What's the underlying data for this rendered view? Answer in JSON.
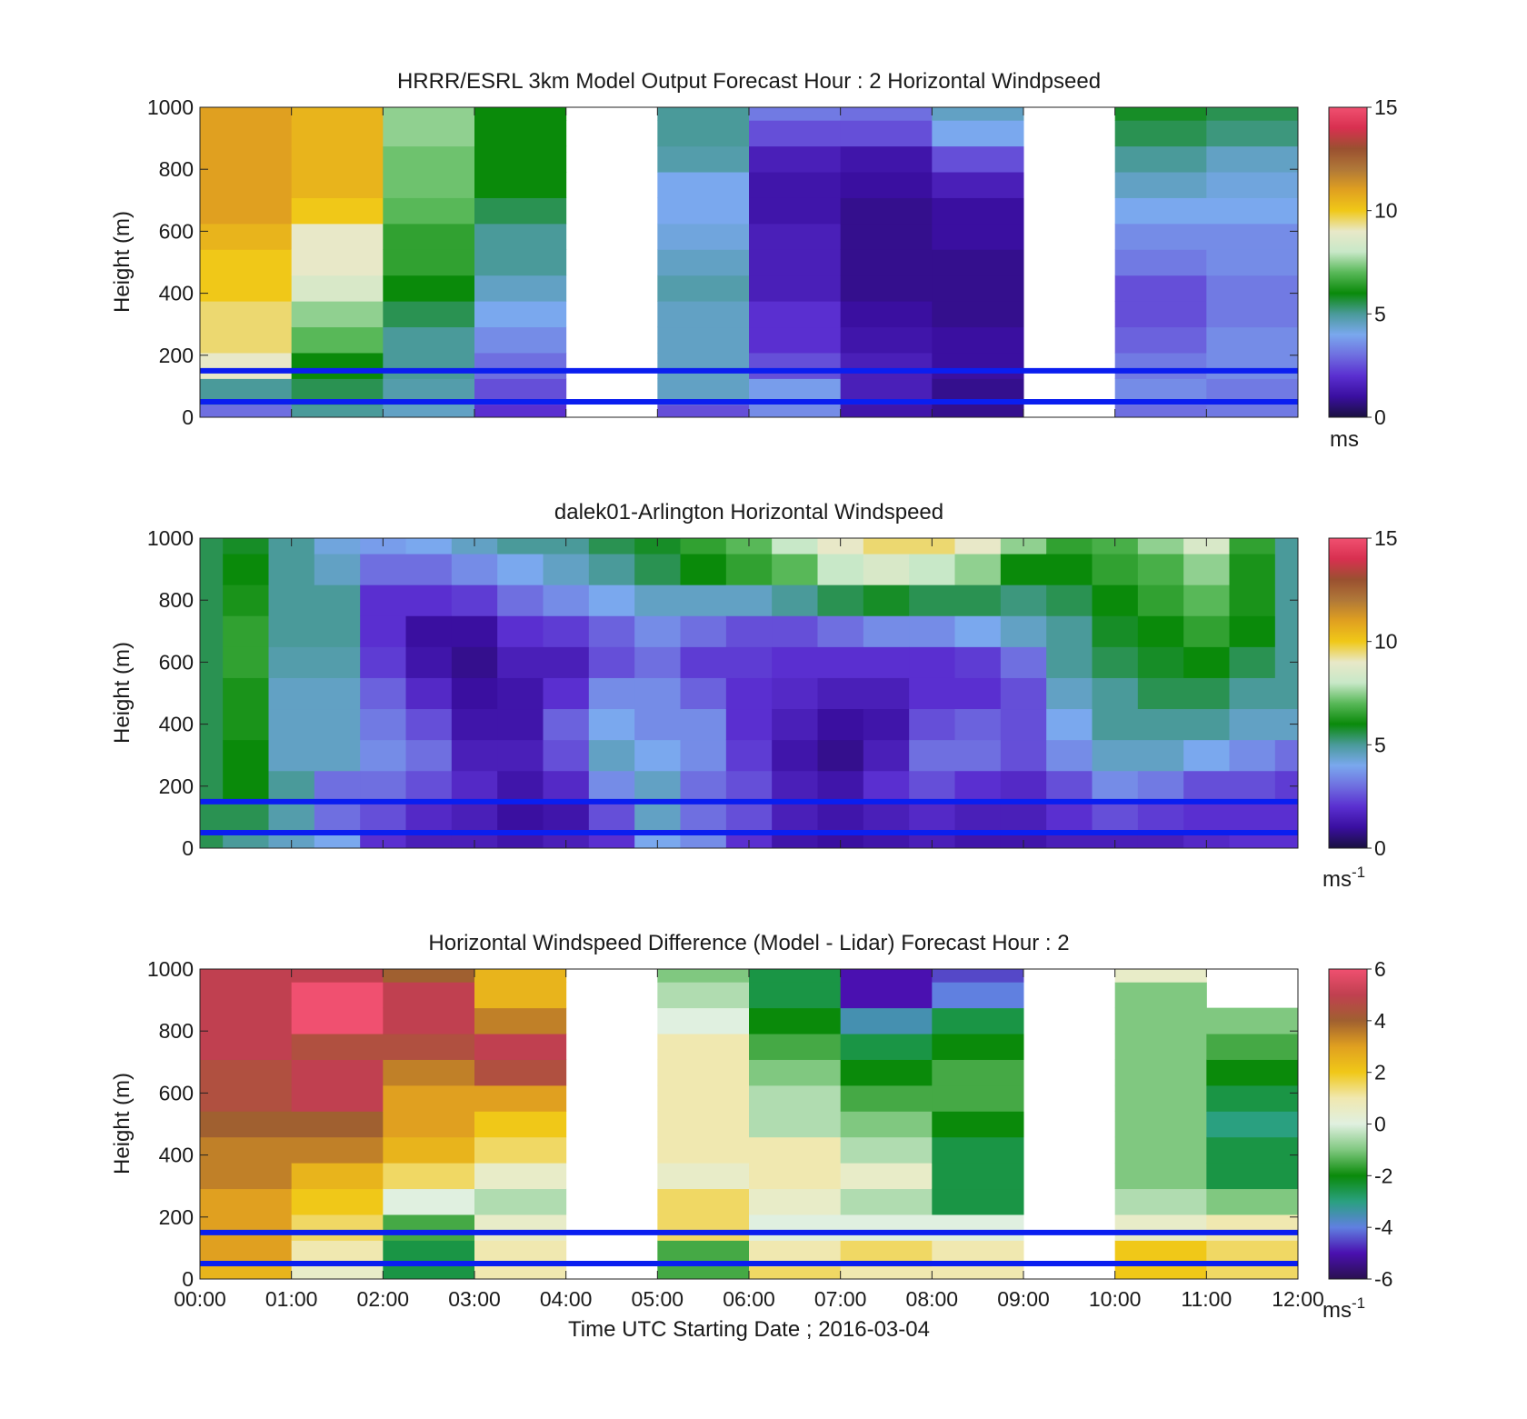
{
  "colors": {
    "speed_stops": [
      "#1a1040",
      "#3a0fa0",
      "#5a2fd0",
      "#6f6fe0",
      "#7aa8ee",
      "#4a9a9a",
      "#0a8a0a",
      "#58b858",
      "#c8e8c8",
      "#e8e8c8",
      "#f0c818",
      "#e0a020",
      "#b07838",
      "#9a5030",
      "#d83050",
      "#f05070"
    ],
    "diff_stops": [
      "#2a1050",
      "#4a10b0",
      "#6080e0",
      "#2aa080",
      "#0a8a0a",
      "#80c880",
      "#e0f0e0",
      "#f0e8b0",
      "#f0c818",
      "#e0a020",
      "#a06030",
      "#c04050",
      "#f05070"
    ],
    "overlay_line": "#0a1ef0",
    "missing": "#8a8a8a"
  },
  "x_axis": {
    "ticks": [
      "00:00",
      "01:00",
      "02:00",
      "03:00",
      "04:00",
      "05:00",
      "06:00",
      "07:00",
      "08:00",
      "09:00",
      "10:00",
      "11:00",
      "12:00"
    ],
    "label": "Time UTC  Starting Date ; 2016-03-04"
  },
  "chart_data": [
    {
      "type": "heatmap",
      "title": "HRRR/ESRL 3km Model Output   Forecast Hour : 2 Horizontal Windpseed",
      "ylabel": "Height (m)",
      "xlabel": "",
      "y_ticks": [
        "0",
        "200",
        "400",
        "600",
        "800",
        "1000"
      ],
      "ylim": [
        0,
        1000
      ],
      "xlim_hours": [
        0,
        12
      ],
      "colorbar": {
        "range": [
          0,
          15
        ],
        "ticks": [
          "0",
          "5",
          "10",
          "15"
        ],
        "unit": "ms"
      },
      "reference_lines_m": [
        50,
        150
      ],
      "columns": [
        {
          "start_hour": 0,
          "values": [
            3,
            5,
            9,
            9.5,
            9.5,
            10,
            10,
            10.5,
            11,
            11,
            11,
            11,
            11
          ]
        },
        {
          "start_hour": 1,
          "values": [
            5,
            5.5,
            6,
            7,
            7.5,
            8.5,
            9,
            9,
            10,
            10.5,
            10.5,
            10.5,
            10.5
          ]
        },
        {
          "start_hour": 2,
          "values": [
            4.5,
            4.8,
            5,
            5,
            5.5,
            6,
            6.5,
            6.5,
            7,
            7.2,
            7.2,
            7.5,
            7.5
          ]
        },
        {
          "start_hour": 3,
          "values": [
            2,
            2.5,
            3,
            3.5,
            4,
            4.5,
            5,
            5,
            5.5,
            6,
            6,
            6,
            6
          ]
        },
        {
          "start_hour": 4,
          "values": []
        },
        {
          "start_hour": 5,
          "values": [
            2.5,
            4.5,
            4.5,
            4.5,
            4.5,
            4.8,
            4.5,
            4.2,
            4,
            4,
            4.8,
            5,
            5
          ]
        },
        {
          "start_hour": 6,
          "values": [
            3.5,
            3.8,
            2.5,
            2,
            2,
            1.5,
            1.5,
            1.5,
            1.2,
            1.2,
            1.5,
            2.5,
            3.2
          ]
        },
        {
          "start_hour": 7,
          "values": [
            1.2,
            1.5,
            1.5,
            1.2,
            1,
            0.8,
            0.8,
            0.8,
            0.8,
            1,
            1.2,
            2.5,
            3
          ]
        },
        {
          "start_hour": 8,
          "values": [
            0.8,
            0.8,
            1,
            1,
            0.8,
            0.8,
            0.8,
            1,
            1,
            1.5,
            2.5,
            4,
            4.5
          ]
        },
        {
          "start_hour": 9,
          "values": []
        },
        {
          "start_hour": 10,
          "values": [
            3,
            3.5,
            3.2,
            2.8,
            2.5,
            2.5,
            3.2,
            3.5,
            4,
            4.5,
            5,
            5.5,
            5.8
          ]
        },
        {
          "start_hour": 11,
          "values": [
            3.2,
            3.2,
            3.5,
            3.5,
            3.2,
            3.2,
            3.5,
            3.5,
            4,
            4.2,
            4.5,
            5.2,
            5.5
          ]
        }
      ]
    },
    {
      "type": "heatmap",
      "title": "dalek01-Arlington  Horizontal Windspeed",
      "ylabel": "Height (m)",
      "xlabel": "",
      "y_ticks": [
        "0",
        "200",
        "400",
        "600",
        "800",
        "1000"
      ],
      "ylim": [
        0,
        1000
      ],
      "xlim_hours": [
        0,
        12
      ],
      "colorbar": {
        "range": [
          0,
          15
        ],
        "ticks": [
          "0",
          "5",
          "10",
          "15"
        ],
        "unit": "ms",
        "unit_sup": "-1"
      },
      "reference_lines_m": [
        50,
        150
      ],
      "time_hours": [
        0,
        0.5,
        1,
        1.5,
        2,
        2.5,
        3,
        3.5,
        4,
        4.5,
        5,
        5.5,
        6,
        6.5,
        7,
        7.5,
        8,
        8.5,
        9,
        9.5,
        10,
        10.5,
        11,
        11.5,
        12
      ],
      "height_m": [
        0,
        100,
        200,
        300,
        400,
        500,
        600,
        700,
        800,
        900,
        1000
      ],
      "values": [
        [
          5.5,
          5.5,
          5.5,
          5.5,
          5.5,
          5.5,
          5.5,
          5.5,
          5.5,
          5.5,
          5.5
        ],
        [
          5,
          5.5,
          6,
          6,
          6.2,
          6.2,
          6.5,
          6.5,
          6.2,
          6,
          5.8
        ],
        [
          4.5,
          4.8,
          5,
          4.5,
          4.5,
          4.5,
          4.8,
          5,
          5,
          5,
          5
        ],
        [
          4,
          3,
          3,
          4.5,
          4.5,
          4.5,
          4.8,
          5,
          5,
          4.5,
          4.2
        ],
        [
          2,
          2.5,
          3,
          3.5,
          3.2,
          2.8,
          2.2,
          2,
          2,
          3,
          3.8
        ],
        [
          1.5,
          1.8,
          2.5,
          3,
          2.5,
          1.8,
          1.2,
          1,
          2,
          3,
          4
        ],
        [
          1.5,
          1.5,
          1.8,
          1.5,
          1.2,
          1,
          0.8,
          1,
          2.2,
          3.5,
          4.5
        ],
        [
          1.2,
          1,
          1.2,
          1.5,
          1.2,
          1.2,
          1.5,
          2,
          3,
          4,
          5
        ],
        [
          1.5,
          1.2,
          1.8,
          2.5,
          2.8,
          2,
          1.5,
          2.2,
          3.5,
          4.5,
          5
        ],
        [
          2,
          2.5,
          3.5,
          4.5,
          4,
          3.5,
          2.5,
          2.8,
          4,
          5,
          5.5
        ],
        [
          4,
          4.5,
          4.5,
          4,
          3.5,
          3.5,
          3,
          3.5,
          4.5,
          5.5,
          5.8
        ],
        [
          3.5,
          3,
          3,
          3.5,
          3.5,
          2.8,
          2.2,
          3,
          4.5,
          6,
          6.5
        ],
        [
          2,
          2.5,
          2.5,
          2.2,
          2,
          2,
          2.2,
          2.5,
          4.5,
          6.5,
          7
        ],
        [
          1.2,
          1.5,
          1.5,
          1.2,
          1.5,
          1.8,
          2,
          2.5,
          5,
          7,
          8
        ],
        [
          1,
          1.2,
          1.2,
          0.8,
          1,
          1.5,
          2,
          3,
          5.5,
          8,
          9
        ],
        [
          1.2,
          1.5,
          2,
          1.5,
          1.2,
          1.5,
          2,
          3.5,
          5.8,
          8.5,
          9.5
        ],
        [
          1.5,
          1.8,
          2.5,
          3,
          2.5,
          2,
          2,
          3.5,
          5.5,
          8,
          9.5
        ],
        [
          1.2,
          1.5,
          2,
          3,
          2.8,
          2,
          2.2,
          4,
          5.5,
          7.5,
          9
        ],
        [
          1.2,
          1.5,
          1.8,
          2.5,
          2.5,
          2.5,
          3,
          4.5,
          5.2,
          6,
          7.5
        ],
        [
          1.5,
          2,
          2.5,
          3.5,
          4,
          4.5,
          5,
          5,
          5.5,
          6,
          6.5
        ],
        [
          1.5,
          2.5,
          3.5,
          4.5,
          5,
          5,
          5.5,
          5.8,
          6,
          6.5,
          6.8
        ],
        [
          1.5,
          2.2,
          3.2,
          4.5,
          5,
          5.5,
          5.8,
          6,
          6.5,
          6.8,
          7.5
        ],
        [
          1.8,
          2,
          2.5,
          4,
          5,
          5.5,
          6,
          6.5,
          7,
          7.5,
          8.5
        ],
        [
          2,
          2,
          2.5,
          3.5,
          4.5,
          5,
          5.5,
          6,
          6.2,
          6.2,
          6.5
        ],
        [
          2,
          2,
          2.2,
          3,
          4.5,
          5,
          5,
          5,
          5,
          5,
          5
        ]
      ]
    },
    {
      "type": "heatmap",
      "title": "Horizontal Windspeed Difference (Model - Lidar) Forecast Hour : 2",
      "ylabel": "Height (m)",
      "xlabel": "Time UTC  Starting Date ; 2016-03-04",
      "y_ticks": [
        "0",
        "200",
        "400",
        "600",
        "800",
        "1000"
      ],
      "ylim": [
        0,
        1000
      ],
      "xlim_hours": [
        0,
        12
      ],
      "colorbar": {
        "range": [
          -6,
          6
        ],
        "ticks": [
          "-6",
          "-4",
          "-2",
          "0",
          "2",
          "4",
          "6"
        ],
        "unit": "ms",
        "unit_sup": "-1"
      },
      "reference_lines_m": [
        50,
        150
      ],
      "columns": [
        {
          "start_hour": 0,
          "values": [
            2.5,
            3,
            3,
            3,
            3.5,
            3.5,
            4,
            4.5,
            4.5,
            5,
            5,
            5,
            5
          ]
        },
        {
          "start_hour": 1,
          "values": [
            0.5,
            1,
            1.5,
            2,
            2.5,
            3.5,
            4,
            5,
            5,
            4.5,
            6,
            6,
            5
          ]
        },
        {
          "start_hour": 2,
          "values": [
            -2.5,
            -2.5,
            -1.5,
            0,
            1.5,
            2.5,
            3,
            3,
            3.5,
            4.5,
            5,
            5,
            4
          ]
        },
        {
          "start_hour": 3,
          "values": [
            1,
            1,
            0.5,
            -0.5,
            0.5,
            1.5,
            2,
            3,
            4.5,
            5,
            3.5,
            2.5,
            2.5
          ]
        },
        {
          "start_hour": 4,
          "values": []
        },
        {
          "start_hour": 5,
          "values": [
            -1.5,
            -1.5,
            1.5,
            1.5,
            0.5,
            1,
            1,
            1,
            1,
            1,
            0,
            -0.5,
            -1
          ]
        },
        {
          "start_hour": 6,
          "values": [
            1.5,
            1,
            0,
            0.5,
            1,
            1,
            -0.5,
            -0.5,
            -1,
            -1.5,
            -2,
            -2.5,
            -2.5
          ]
        },
        {
          "start_hour": 7,
          "values": [
            1,
            1.5,
            0,
            -0.5,
            0.5,
            -0.5,
            -1,
            -1.5,
            -2,
            -2.5,
            -3.5,
            -5,
            -5
          ]
        },
        {
          "start_hour": 8,
          "values": [
            1,
            1,
            0,
            -2.5,
            -2.5,
            -2.5,
            -2,
            -1.5,
            -1.5,
            -2,
            -2.5,
            -4,
            -4.5
          ]
        },
        {
          "start_hour": 9,
          "values": []
        },
        {
          "start_hour": 10,
          "values": [
            2,
            2,
            0.5,
            -0.5,
            -1,
            -1,
            -1,
            -1,
            -1,
            -1,
            -1,
            -1,
            0.5
          ]
        },
        {
          "start_hour": 11,
          "values": [
            1.5,
            1.5,
            1,
            -1,
            -2.5,
            -2.5,
            -3,
            -2.5,
            -2,
            -1.5,
            -1,
            null,
            null
          ]
        }
      ]
    }
  ]
}
